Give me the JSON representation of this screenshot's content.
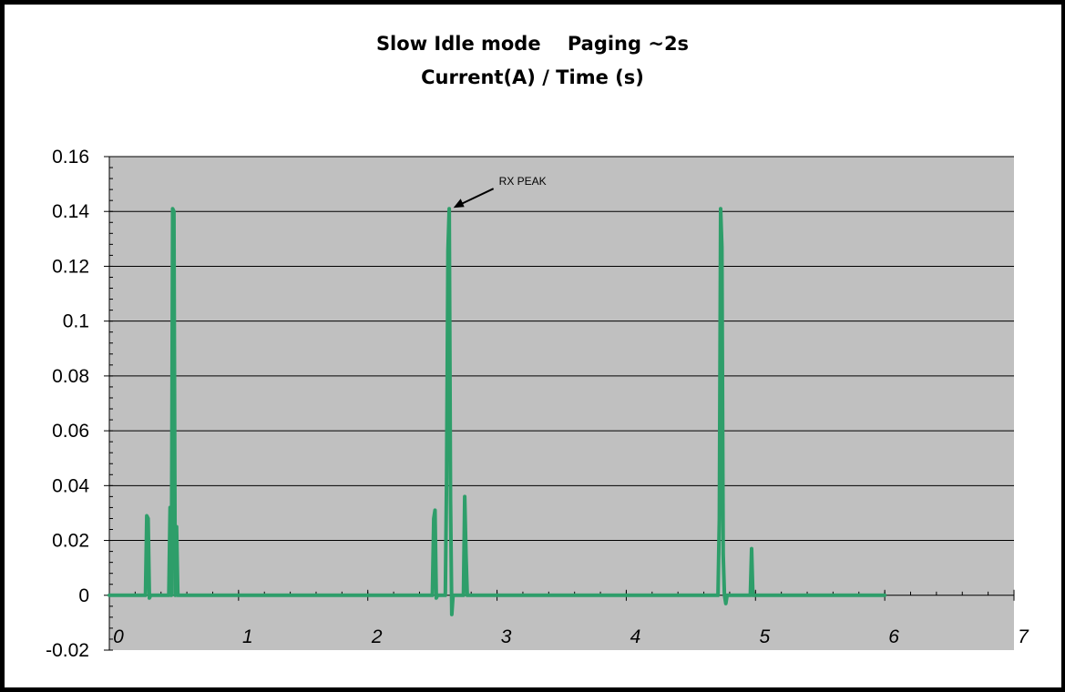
{
  "chart_data": {
    "type": "line",
    "title": "Slow Idle mode    Paging ~2s",
    "subtitle": "Current(A) / Time (s)",
    "xlabel": "",
    "ylabel": "",
    "xlim": [
      0,
      7
    ],
    "ylim": [
      -0.02,
      0.16
    ],
    "x_ticks": [
      "0",
      "1",
      "2",
      "3",
      "4",
      "5",
      "6",
      "7"
    ],
    "y_ticks": [
      "0.16",
      "0.14",
      "0.12",
      "0.1",
      "0.08",
      "0.06",
      "0.04",
      "0.02",
      "0",
      "-0.02"
    ],
    "grid": "horizontal",
    "colors": {
      "line": "#2e9e6a",
      "plot_bg": "#c0c0c0",
      "grid": "#000000"
    },
    "series": [
      {
        "x": [
          0,
          0.28,
          0.29,
          0.3,
          0.31,
          0.32,
          0.33,
          0.46,
          0.47,
          0.48,
          0.49,
          0.5,
          0.51,
          0.52,
          0.53,
          0.54,
          0.55,
          0.56,
          2.5,
          2.51,
          2.52,
          2.53,
          2.54,
          2.55,
          2.6,
          2.61,
          2.62,
          2.63,
          2.64,
          2.65,
          2.66,
          2.67,
          2.68,
          2.74,
          2.75,
          2.76,
          2.77,
          2.78,
          4.71,
          4.72,
          4.73,
          4.74,
          4.75,
          4.76,
          4.77,
          4.78,
          4.79,
          4.8,
          4.81,
          4.96,
          4.97,
          4.98,
          4.99,
          6.0
        ],
        "values": [
          0.0,
          0.0,
          0.029,
          0.028,
          -0.001,
          0.0,
          0.0,
          0.0,
          0.032,
          0.0,
          0.141,
          0.14,
          0.0,
          0.025,
          0.0,
          0.0,
          0.0,
          0.0,
          0.0,
          0.028,
          0.031,
          -0.001,
          0.0,
          0.0,
          0.0,
          0.043,
          0.126,
          0.141,
          0.035,
          -0.007,
          0.0,
          0.0,
          0.0,
          0.0,
          0.036,
          0.015,
          0.0,
          0.0,
          0.0,
          0.028,
          0.141,
          0.127,
          0.015,
          0.0,
          -0.003,
          0.0,
          0.0,
          0.0,
          0.0,
          0.0,
          0.017,
          0.0,
          0.0,
          0.0
        ]
      }
    ],
    "annotations": [
      {
        "text": "RX PEAK",
        "x": 2.62,
        "y": 0.141
      }
    ]
  }
}
